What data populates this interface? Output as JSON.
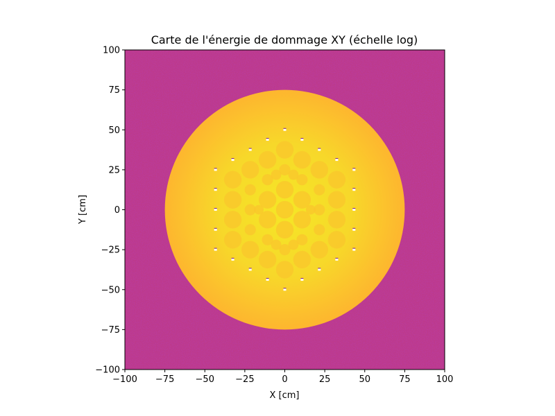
{
  "chart_data": {
    "type": "heatmap",
    "title": "Carte de l'énergie de dommage XY (échelle log)",
    "xlabel": "X [cm]",
    "ylabel": "Y [cm]",
    "xlim": [
      -100,
      100
    ],
    "ylim": [
      -100,
      100
    ],
    "xticks": [
      -100,
      -75,
      -50,
      -25,
      0,
      25,
      50,
      75,
      100
    ],
    "yticks": [
      -100,
      -75,
      -50,
      -25,
      0,
      25,
      50,
      75,
      100
    ],
    "x_tick_labels": [
      "−100",
      "−75",
      "−50",
      "−25",
      "0",
      "25",
      "50",
      "75",
      "100"
    ],
    "y_tick_labels": [
      "−100",
      "−75",
      "−50",
      "−25",
      "0",
      "25",
      "50",
      "75",
      "100"
    ],
    "grid": false,
    "colormap": "plasma",
    "colors": {
      "background_low": "#c13c8a",
      "background_mid": "#b5378f",
      "disk_outer": "#fdb82e",
      "disk_inner": "#f5e626",
      "cell": "#f9c52c"
    },
    "regions": [
      {
        "shape": "circle",
        "center": [
          0,
          0
        ],
        "radius": 75,
        "level": "high"
      }
    ],
    "cells": [
      {
        "x": 0,
        "y": 37.5,
        "r": 5.5
      },
      {
        "x": 0,
        "y": 25,
        "r": 3.5
      },
      {
        "x": 0,
        "y": 12.5,
        "r": 5.5
      },
      {
        "x": 0,
        "y": 0,
        "r": 5.5
      },
      {
        "x": 0,
        "y": -12.5,
        "r": 5.5
      },
      {
        "x": 0,
        "y": -25,
        "r": 3.5
      },
      {
        "x": 0,
        "y": -37.5,
        "r": 5.5
      },
      {
        "x": 10.8,
        "y": 31.2,
        "r": 5.5
      },
      {
        "x": 10.8,
        "y": 18.8,
        "r": 3.5
      },
      {
        "x": 10.8,
        "y": 6.2,
        "r": 5.5
      },
      {
        "x": 10.8,
        "y": -6.2,
        "r": 5.5
      },
      {
        "x": 10.8,
        "y": -18.8,
        "r": 3.5
      },
      {
        "x": 10.8,
        "y": -31.2,
        "r": 5.5
      },
      {
        "x": -10.8,
        "y": 31.2,
        "r": 5.5
      },
      {
        "x": -10.8,
        "y": 18.8,
        "r": 3.5
      },
      {
        "x": -10.8,
        "y": 6.2,
        "r": 5.5
      },
      {
        "x": -10.8,
        "y": -6.2,
        "r": 5.5
      },
      {
        "x": -10.8,
        "y": -18.8,
        "r": 3.5
      },
      {
        "x": -10.8,
        "y": -31.2,
        "r": 5.5
      },
      {
        "x": 21.6,
        "y": 25,
        "r": 5.5
      },
      {
        "x": 21.6,
        "y": 12.5,
        "r": 3.5
      },
      {
        "x": 21.6,
        "y": 0,
        "r": 3.5
      },
      {
        "x": 21.6,
        "y": -12.5,
        "r": 3.5
      },
      {
        "x": 21.6,
        "y": -25,
        "r": 5.5
      },
      {
        "x": -21.6,
        "y": 25,
        "r": 5.5
      },
      {
        "x": -21.6,
        "y": 12.5,
        "r": 3.5
      },
      {
        "x": -21.6,
        "y": 0,
        "r": 3.5
      },
      {
        "x": -21.6,
        "y": -12.5,
        "r": 3.5
      },
      {
        "x": -21.6,
        "y": -25,
        "r": 5.5
      },
      {
        "x": 32.5,
        "y": 18.8,
        "r": 5.5
      },
      {
        "x": 32.5,
        "y": 6.2,
        "r": 5.5
      },
      {
        "x": 32.5,
        "y": -6.2,
        "r": 5.5
      },
      {
        "x": 32.5,
        "y": -18.8,
        "r": 5.5
      },
      {
        "x": -32.5,
        "y": 18.8,
        "r": 5.5
      },
      {
        "x": -32.5,
        "y": 6.2,
        "r": 5.5
      },
      {
        "x": -32.5,
        "y": -6.2,
        "r": 5.5
      },
      {
        "x": -32.5,
        "y": -18.8,
        "r": 5.5
      },
      {
        "x": 5.4,
        "y": 21.9,
        "r": 3.2
      },
      {
        "x": -5.4,
        "y": 21.9,
        "r": 3.2
      },
      {
        "x": 5.4,
        "y": -21.9,
        "r": 3.2
      },
      {
        "x": -5.4,
        "y": -21.9,
        "r": 3.2
      },
      {
        "x": 16.2,
        "y": 0,
        "r": 3.0
      },
      {
        "x": -16.2,
        "y": 0,
        "r": 3.0
      }
    ],
    "markers": [
      {
        "x": 0,
        "y": 50
      },
      {
        "x": 10.8,
        "y": 43.8
      },
      {
        "x": 21.6,
        "y": 37.5
      },
      {
        "x": 32.5,
        "y": 31.2
      },
      {
        "x": 43.3,
        "y": 25
      },
      {
        "x": 43.3,
        "y": 12.5
      },
      {
        "x": 43.3,
        "y": 0
      },
      {
        "x": 43.3,
        "y": -12.5
      },
      {
        "x": 43.3,
        "y": -25
      },
      {
        "x": 32.5,
        "y": -31.2
      },
      {
        "x": 21.6,
        "y": -37.5
      },
      {
        "x": 10.8,
        "y": -43.8
      },
      {
        "x": 0,
        "y": -50
      },
      {
        "x": -10.8,
        "y": -43.8
      },
      {
        "x": -21.6,
        "y": -37.5
      },
      {
        "x": -32.5,
        "y": -31.2
      },
      {
        "x": -43.3,
        "y": -25
      },
      {
        "x": -43.3,
        "y": -12.5
      },
      {
        "x": -43.3,
        "y": 0
      },
      {
        "x": -43.3,
        "y": 12.5
      },
      {
        "x": -43.3,
        "y": 25
      },
      {
        "x": -32.5,
        "y": 31.2
      },
      {
        "x": -21.6,
        "y": 37.5
      },
      {
        "x": -10.8,
        "y": 43.8
      }
    ]
  }
}
